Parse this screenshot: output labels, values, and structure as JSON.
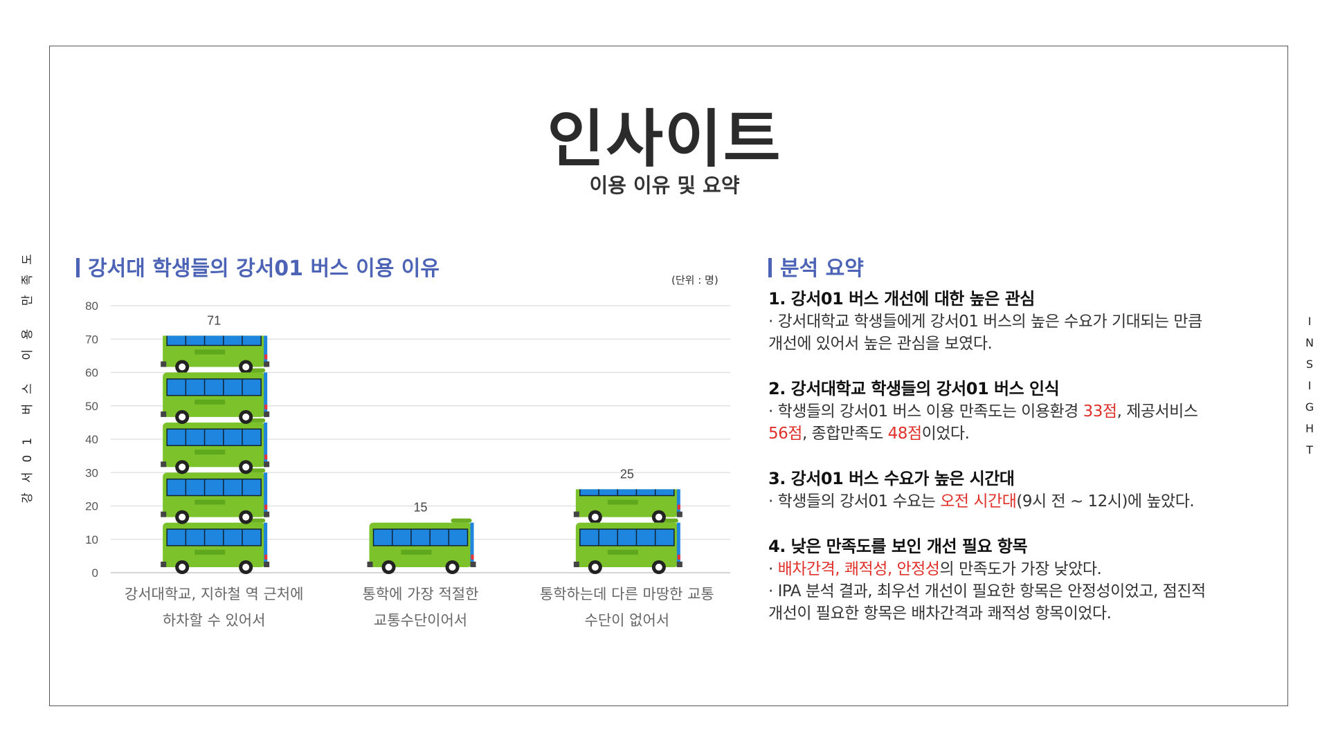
{
  "side_left_text": "강서01 버스 이용 만족도",
  "side_right_letters": [
    "I",
    "N",
    "S",
    "I",
    "G",
    "H",
    "T"
  ],
  "title": "인사이트",
  "subtitle": "이용 이유 및 요약",
  "chart_heading": "강서대 학생들의 강서01 버스 이용 이유",
  "unit_label": "(단위 : 명)",
  "summary_heading": "분석 요약",
  "colors": {
    "accent": "#4c63b6",
    "highlight": "#e0302a",
    "bus_body": "#7cc22b",
    "bus_window": "#1f86e0"
  },
  "chart_data": {
    "type": "bar",
    "categories": [
      "강서대학교, 지하철 역 근처에 하차할 수 있어서",
      "통학에 가장 적절한 교통수단이어서",
      "통학하는데 다른 마땅한 교통 수단이 없어서"
    ],
    "category_lines": [
      [
        "강서대학교, 지하철 역 근처에",
        "하차할 수 있어서"
      ],
      [
        "통학에 가장 적절한",
        "교통수단이어서"
      ],
      [
        "통학하는데 다른 마땅한 교통",
        "수단이 없어서"
      ]
    ],
    "values": [
      71,
      15,
      25
    ],
    "ylim": [
      0,
      80
    ],
    "yticks": [
      0,
      10,
      20,
      30,
      40,
      50,
      60,
      70,
      80
    ],
    "bar_icon": "bus-icon",
    "bus_unit": 15,
    "grid": true,
    "legend": "none"
  },
  "summary": [
    {
      "title": "1. 강서01 버스 개선에 대한 높은 관심",
      "lines": [
        [
          {
            "t": "· 강서대학교 학생들에게 강서01 버스의 높은 수요가 기대되는 만큼"
          }
        ],
        [
          {
            "t": "개선에 있어서 높은 관심을 보였다."
          }
        ]
      ]
    },
    {
      "title": "2. 강서대학교 학생들의 강서01 버스 인식",
      "lines": [
        [
          {
            "t": "· 학생들의 강서01 버스 이용 만족도는 이용환경 "
          },
          {
            "t": "33점",
            "red": true
          },
          {
            "t": ", 제공서비스"
          }
        ],
        [
          {
            "t": "56점",
            "red": true
          },
          {
            "t": ", 종합만족도 "
          },
          {
            "t": "48점",
            "red": true
          },
          {
            "t": "이었다."
          }
        ]
      ]
    },
    {
      "title": "3. 강서01 버스 수요가 높은 시간대",
      "lines": [
        [
          {
            "t": "· 학생들의 강서01 수요는 "
          },
          {
            "t": "오전 시간대",
            "red": true
          },
          {
            "t": "(9시 전 ~ 12시)에 높았다."
          }
        ]
      ]
    },
    {
      "title": "4. 낮은 만족도를 보인 개선 필요 항목",
      "lines": [
        [
          {
            "t": "· "
          },
          {
            "t": "배차간격, 쾌적성, 안정성",
            "red": true
          },
          {
            "t": "의 만족도가 가장 낮았다."
          }
        ],
        [
          {
            "t": "· IPA 분석 결과, 최우선 개선이 필요한 항목은 안정성이었고, 점진적"
          }
        ],
        [
          {
            "t": "개선이 필요한 항목은 배차간격과 쾌적성 항목이었다."
          }
        ]
      ]
    }
  ]
}
